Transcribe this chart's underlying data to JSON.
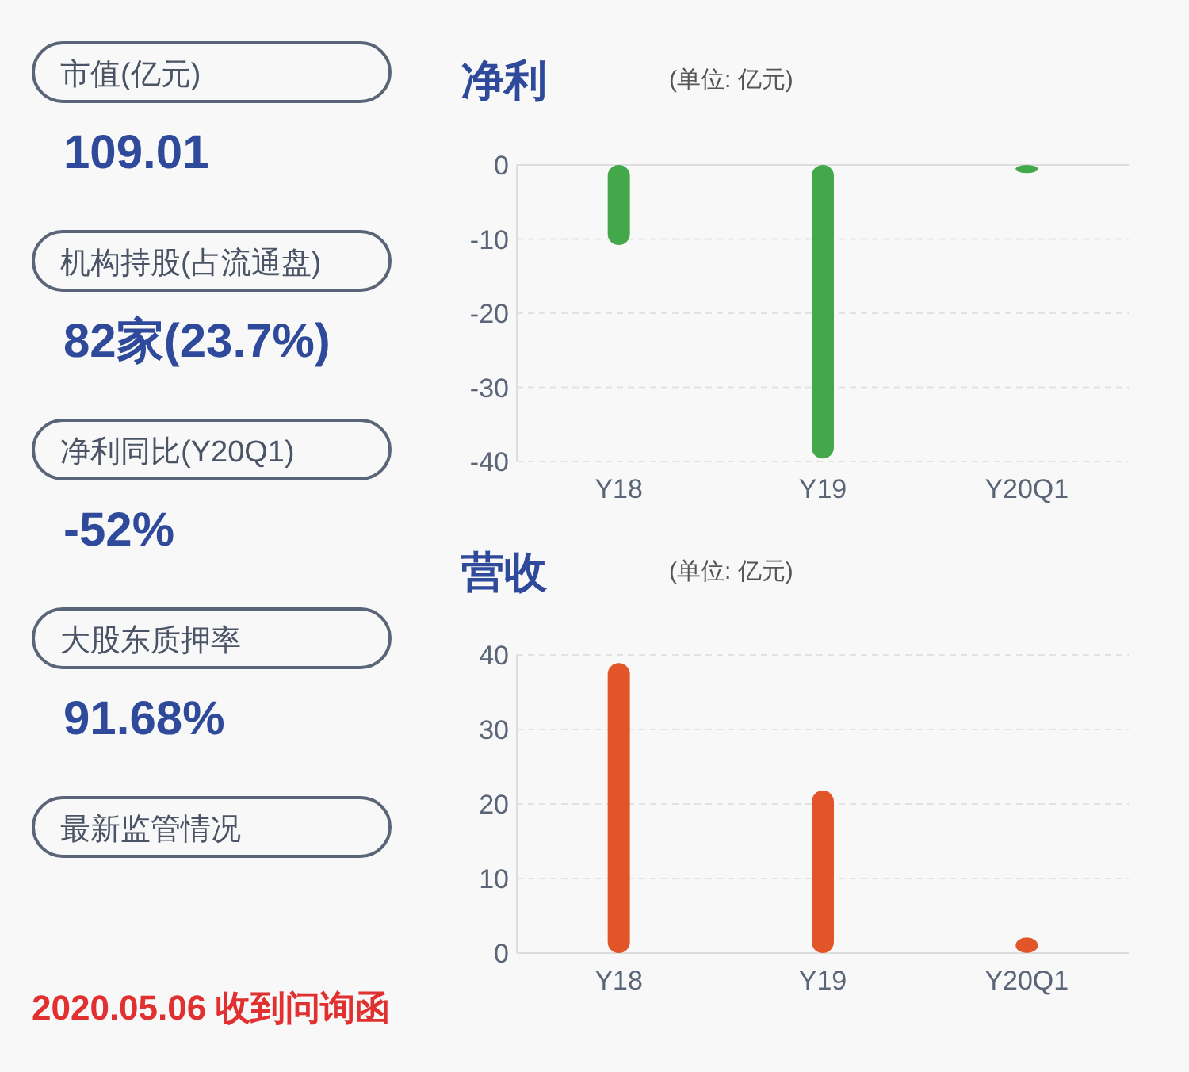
{
  "chart_data": [
    {
      "type": "other",
      "annotations": [
        "市值(亿元)",
        "109.01",
        "机构持股(占流通盘)",
        "82家(23.7%)",
        "净利同比(Y20Q1)",
        "-52%",
        "大股东质押率",
        "91.68%",
        "最新监管情况",
        "2020.05.06 收到问询函"
      ]
    },
    {
      "type": "bar",
      "title": "净利",
      "subtitle": "(单位: 亿元)",
      "categories": [
        "Y18",
        "Y19",
        "Y20Q1"
      ],
      "series": [
        {
          "color": "#42a84a",
          "values": [
            -10.8,
            -39.6,
            -1.1
          ]
        }
      ],
      "ylim": [
        -40,
        0
      ],
      "yticks": [
        -40,
        -30,
        -20,
        -10,
        0
      ],
      "grid": "y"
    },
    {
      "type": "bar",
      "title": "营收",
      "subtitle": "(单位: 亿元)",
      "categories": [
        "Y18",
        "Y19",
        "Y20Q1"
      ],
      "series": [
        {
          "color": "#e25528",
          "values": [
            38.9,
            21.8,
            2.1
          ]
        }
      ],
      "ylim": [
        0,
        40
      ],
      "yticks": [
        0,
        10,
        20,
        30,
        40
      ],
      "grid": "y"
    }
  ]
}
